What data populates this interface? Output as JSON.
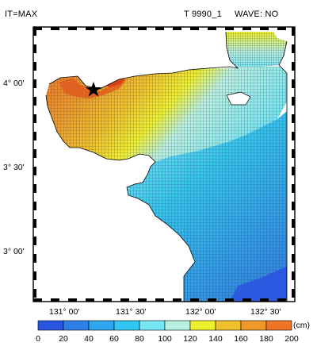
{
  "header": {
    "left": "IT=MAX",
    "middle": "T 9990_1",
    "right": "WAVE: NO"
  },
  "map": {
    "lon_ticks": [
      "131° 00'",
      "131° 30'",
      "132° 00'",
      "132° 30'"
    ],
    "lat_ticks": [
      "4° 00'",
      "3° 30'",
      "3° 00'"
    ],
    "grid_line_color": "#1a1a1a",
    "marker": "star-icon"
  },
  "colorbar": {
    "unit": "(cm)",
    "tick_labels": [
      "0",
      "20",
      "40",
      "60",
      "80",
      "100",
      "120",
      "140",
      "160",
      "180",
      "200"
    ],
    "colors": [
      "#2a55e0",
      "#2f7fe8",
      "#2fa6ee",
      "#32c6f2",
      "#76e6f4",
      "#b8f0e2",
      "#eef02e",
      "#f0c12a",
      "#ee9a2a",
      "#ee7526"
    ]
  }
}
